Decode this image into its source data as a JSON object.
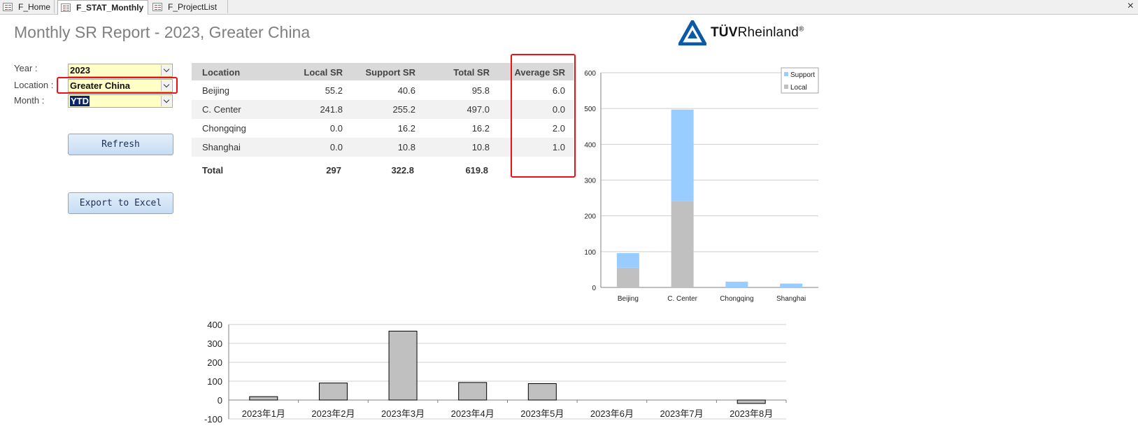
{
  "tabs": [
    {
      "label": "F_Home",
      "active": false
    },
    {
      "label": "F_STAT_Monthly",
      "active": true
    },
    {
      "label": "F_ProjectList",
      "active": false
    }
  ],
  "close_glyph": "×",
  "report": {
    "title": "Monthly SR Report -  2023, Greater China",
    "logo_text": "TÜVRheinland",
    "logo_bold": "TÜV",
    "logo_rest": "Rheinland",
    "logo_mark": "®"
  },
  "filters": {
    "year_label": "Year :",
    "year_value": "2023",
    "location_label": "Location :",
    "location_value": "Greater China",
    "month_label": "Month :",
    "month_value": "YTD"
  },
  "buttons": {
    "refresh": "Refresh",
    "export": "Export to Excel"
  },
  "table": {
    "headers": [
      "Location",
      "Local SR",
      "Support SR",
      "Total SR",
      "Average SR"
    ],
    "rows": [
      [
        "Beijing",
        "55.2",
        "40.6",
        "95.8",
        "6.0"
      ],
      [
        "C. Center",
        "241.8",
        "255.2",
        "497.0",
        "0.0"
      ],
      [
        "Chongqing",
        "0.0",
        "16.2",
        "16.2",
        "2.0"
      ],
      [
        "Shanghai",
        "0.0",
        "10.8",
        "10.8",
        "1.0"
      ]
    ],
    "total": [
      "Total",
      "297",
      "322.8",
      "619.8",
      ""
    ]
  },
  "chart_data": [
    {
      "type": "bar",
      "stacked": true,
      "categories": [
        "Beijing",
        "C. Center",
        "Chongqing",
        "Shanghai"
      ],
      "series": [
        {
          "name": "Local",
          "values": [
            55.2,
            241.8,
            0.0,
            0.0
          ],
          "color": "#c0c0c0"
        },
        {
          "name": "Support",
          "values": [
            40.6,
            255.2,
            16.2,
            10.8
          ],
          "color": "#99ccff"
        }
      ],
      "ylim": [
        0,
        600
      ],
      "yticks": [
        0,
        100,
        200,
        300,
        400,
        500,
        600
      ],
      "grid": true,
      "legend": "top-right"
    },
    {
      "type": "bar",
      "categories": [
        "2023年1月",
        "2023年2月",
        "2023年3月",
        "2023年4月",
        "2023年5月",
        "2023年6月",
        "2023年7月",
        "2023年8月"
      ],
      "values": [
        18,
        90,
        365,
        93,
        87,
        0,
        0,
        -18
      ],
      "color": "#c0c0c0",
      "ylim": [
        -100,
        400
      ],
      "yticks": [
        -100,
        0,
        100,
        200,
        300,
        400
      ],
      "grid": true
    }
  ]
}
